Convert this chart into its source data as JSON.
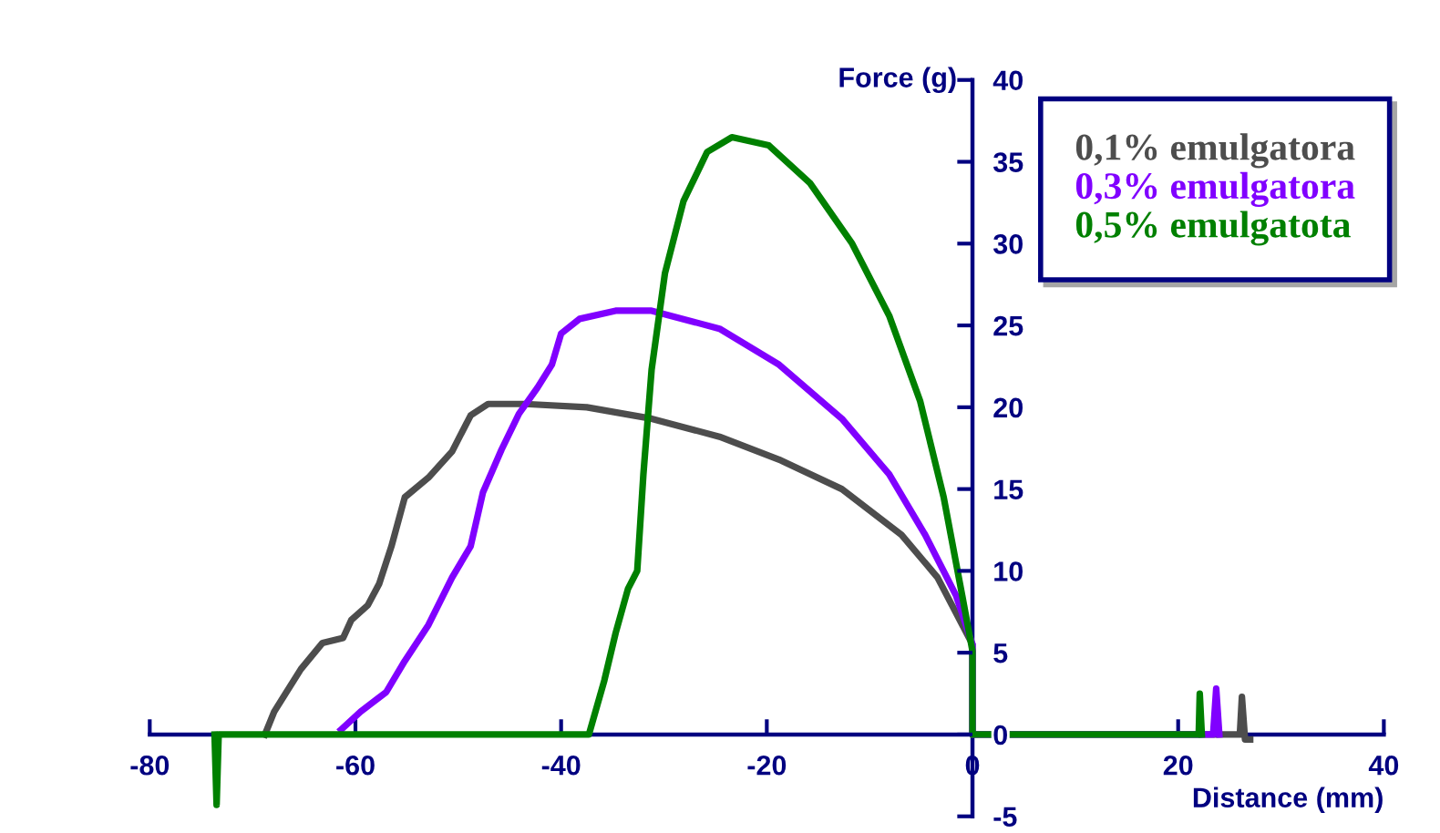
{
  "chart_data": {
    "type": "line",
    "xlabel": "Distance (mm)",
    "ylabel": "Force (g)",
    "xlim": [
      -80,
      40
    ],
    "xticks": [
      -80,
      -60,
      -40,
      -20,
      0,
      20,
      40
    ],
    "ylim": [
      -5,
      40
    ],
    "yticks": [
      -5,
      0,
      5,
      10,
      15,
      20,
      25,
      30,
      35,
      40
    ],
    "grid": false,
    "legend": "top right",
    "marker": "none",
    "line_style": "solid",
    "series": [
      {
        "name": "0,1% emulgatora",
        "color": "#4d4d4d",
        "x": [
          -68.8,
          -67.9,
          -65.3,
          -63.2,
          -61.2,
          -60.4,
          -58.8,
          -57.7,
          -56.5,
          -55.2,
          -52.9,
          -50.6,
          -48.8,
          -47.1,
          -43.5,
          -37.5,
          -31.2,
          -24.6,
          -18.8,
          -12.7,
          -6.9,
          -3.4,
          0,
          0,
          26,
          26.2,
          26.5,
          27
        ],
        "values": [
          0,
          1.4,
          4,
          5.6,
          5.9,
          7,
          7.9,
          9.2,
          11.5,
          14.5,
          15.7,
          17.3,
          19.5,
          20.2,
          20.2,
          20,
          19.3,
          18.2,
          16.8,
          15,
          12.2,
          9.6,
          5.5,
          0,
          0,
          2.3,
          -0.3,
          -0.3
        ]
      },
      {
        "name": "0,3% emulgatora",
        "color": "#8000ff",
        "x": [
          -61.4,
          -59.5,
          -57,
          -55.2,
          -52.9,
          -50.6,
          -48.8,
          -47.6,
          -45.8,
          -44.1,
          -42.3,
          -40.9,
          -40,
          -38.2,
          -34.7,
          -31.2,
          -24.6,
          -18.8,
          -12.7,
          -8.1,
          -4.6,
          -1.6,
          0,
          0,
          23.4,
          23.7,
          24
        ],
        "values": [
          0.3,
          1.4,
          2.6,
          4.5,
          6.7,
          9.6,
          11.5,
          14.8,
          17.4,
          19.6,
          21.2,
          22.6,
          24.5,
          25.4,
          25.9,
          25.9,
          24.8,
          22.6,
          19.3,
          15.9,
          12.2,
          8.5,
          5.5,
          0,
          0,
          2.8,
          0
        ]
      },
      {
        "name": "0,5% emulgatota",
        "color": "#008000",
        "x": [
          -73.7,
          -73.5,
          -73.3,
          -37.3,
          -35.8,
          -34.7,
          -33.5,
          -32.6,
          -32,
          -31.2,
          -29.9,
          -28.1,
          -25.8,
          -23.4,
          -19.8,
          -15.8,
          -11.7,
          -8.1,
          -5.1,
          -2.8,
          -1,
          0,
          0,
          22,
          22.1,
          22.3
        ],
        "values": [
          0,
          -4.3,
          0,
          0,
          3.3,
          6.2,
          8.9,
          10,
          15.9,
          22.3,
          28.2,
          32.6,
          35.6,
          36.5,
          36,
          33.7,
          30,
          25.6,
          20.4,
          14.5,
          8.5,
          5.1,
          0,
          0,
          2.5,
          0
        ]
      }
    ]
  }
}
